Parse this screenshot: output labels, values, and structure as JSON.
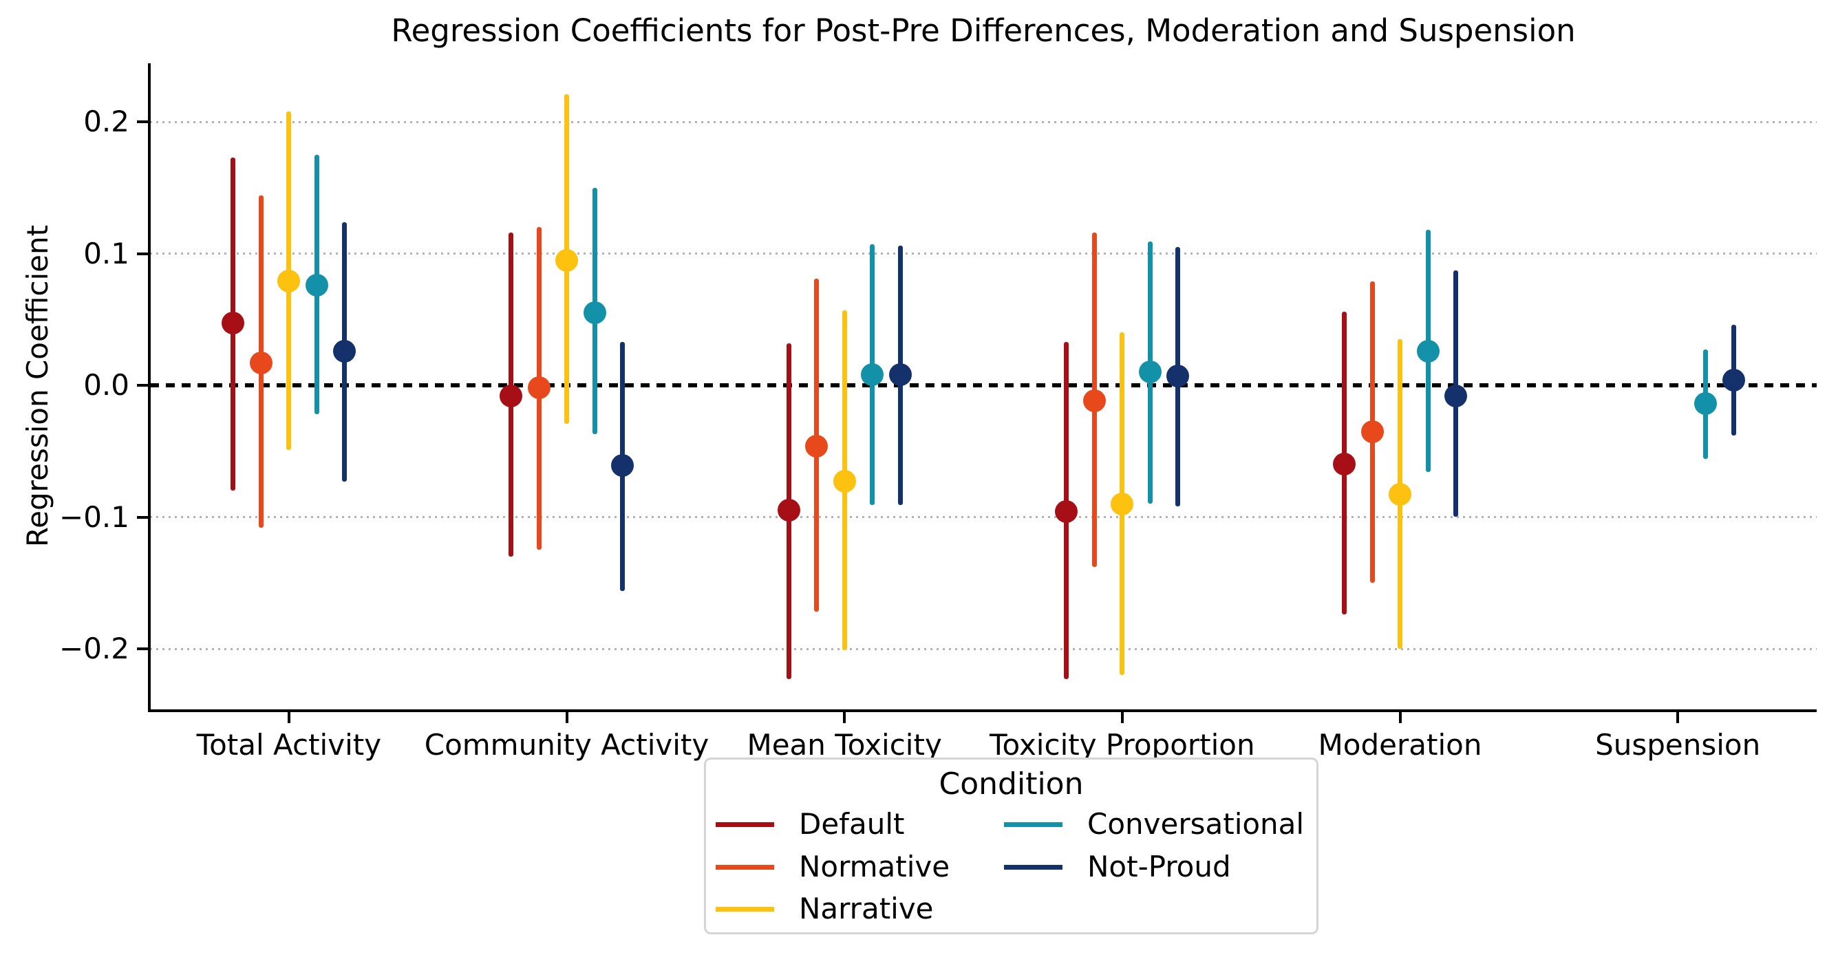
{
  "figure": {
    "background": "#ffffff",
    "axis_color": "#000000"
  },
  "chart_data": {
    "type": "scatter",
    "subtype": "point-estimates-with-error-bars",
    "title": "Regression Coefficients for Post-Pre Differences, Moderation and Suspension",
    "ylabel": "Regression Coefficient",
    "xlabel": "",
    "categories": [
      "Total Activity",
      "Community Activity",
      "Mean Toxicity",
      "Toxicity Proportion",
      "Moderation",
      "Suspension"
    ],
    "ylim": [
      -0.246,
      0.244
    ],
    "yticks": [
      0.2,
      0.1,
      0,
      -0.1,
      -0.2
    ],
    "ytick_labels": [
      "0.2",
      "0.1",
      "0.0",
      "−0.1",
      "−0.2"
    ],
    "grid": "horizontal-dotted",
    "grid_color": "#b3b3b3",
    "zero_line": {
      "value": 0,
      "style": "bold-dotted",
      "color": "#000000"
    },
    "legend": {
      "title": "Condition",
      "position": "below-center",
      "columns": 2
    },
    "series": [
      {
        "name": "Default",
        "color": "#a50f15",
        "estimates": [
          0.047,
          -0.008,
          -0.095,
          -0.096,
          -0.06,
          null
        ],
        "ci_low": [
          -0.08,
          -0.13,
          -0.223,
          -0.223,
          -0.174,
          null
        ],
        "ci_high": [
          0.173,
          0.116,
          0.032,
          0.033,
          0.056,
          null
        ]
      },
      {
        "name": "Normative",
        "color": "#e8491c",
        "estimates": [
          0.017,
          -0.002,
          -0.046,
          -0.012,
          -0.035,
          null
        ],
        "ci_low": [
          -0.108,
          -0.125,
          -0.172,
          -0.138,
          -0.15,
          null
        ],
        "ci_high": [
          0.144,
          0.12,
          0.081,
          0.116,
          0.079,
          null
        ]
      },
      {
        "name": "Narrative",
        "color": "#fdc110",
        "estimates": [
          0.079,
          0.095,
          -0.073,
          -0.09,
          -0.083,
          null
        ],
        "ci_low": [
          -0.049,
          -0.029,
          -0.201,
          -0.22,
          -0.2,
          null
        ],
        "ci_high": [
          0.208,
          0.221,
          0.057,
          0.04,
          0.035,
          null
        ]
      },
      {
        "name": "Conversational",
        "color": "#1291a9",
        "estimates": [
          0.076,
          0.055,
          0.008,
          0.01,
          0.026,
          -0.014
        ],
        "ci_low": [
          -0.022,
          -0.037,
          -0.091,
          -0.09,
          -0.066,
          -0.056
        ],
        "ci_high": [
          0.175,
          0.15,
          0.107,
          0.109,
          0.118,
          0.027
        ]
      },
      {
        "name": "Not-Proud",
        "color": "#14316b",
        "estimates": [
          0.026,
          -0.061,
          0.008,
          0.007,
          -0.008,
          0.004
        ],
        "ci_low": [
          -0.073,
          -0.156,
          -0.091,
          -0.092,
          -0.1,
          -0.038
        ],
        "ci_high": [
          0.124,
          0.033,
          0.106,
          0.105,
          0.087,
          0.046
        ]
      }
    ]
  }
}
